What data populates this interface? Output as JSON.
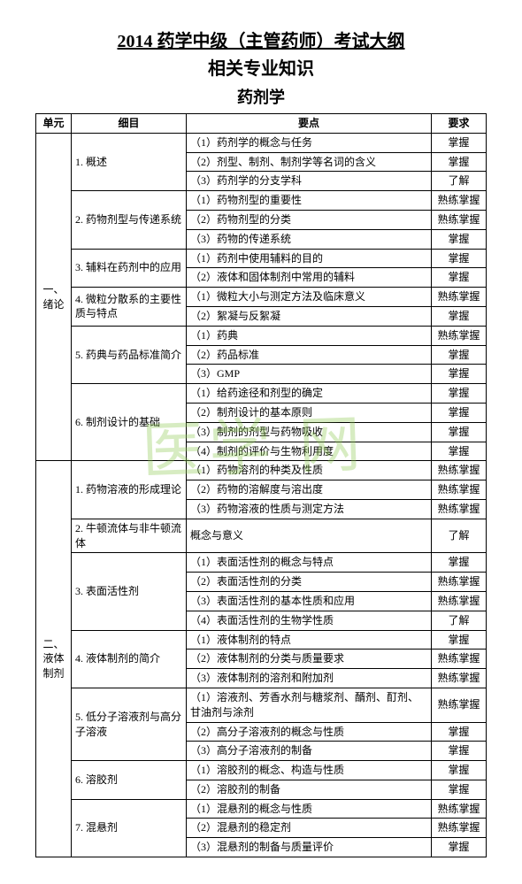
{
  "title_main": "2014 药学中级（主管药师）考试大纲",
  "title_sub": "相关专业知识",
  "title_subject": "药剂学",
  "watermark": "医学     网",
  "headers": {
    "unit": "单元",
    "sub": "细目",
    "point": "要点",
    "req": "要求"
  },
  "units": [
    {
      "name": "一、绪论",
      "subs": [
        {
          "name": "1. 概述",
          "points": [
            {
              "t": "（1）药剂学的概念与任务",
              "r": "掌握"
            },
            {
              "t": "（2）剂型、制剂、制剂学等名词的含义",
              "r": "掌握"
            },
            {
              "t": "（3）药剂学的分支学科",
              "r": "了解"
            }
          ]
        },
        {
          "name": "2. 药物剂型与传递系统",
          "points": [
            {
              "t": "（1）药物剂型的重要性",
              "r": "熟练掌握"
            },
            {
              "t": "（2）药物剂型的分类",
              "r": "熟练掌握"
            },
            {
              "t": "（3）药物的传递系统",
              "r": "掌握"
            }
          ]
        },
        {
          "name": "3. 辅料在药剂中的应用",
          "points": [
            {
              "t": "（1）药剂中使用辅料的目的",
              "r": "掌握"
            },
            {
              "t": "（2）液体和固体制剂中常用的辅料",
              "r": "掌握"
            }
          ]
        },
        {
          "name": "4. 微粒分散系的主要性质与特点",
          "points": [
            {
              "t": "（1）微粒大小与测定方法及临床意义",
              "r": "熟练掌握"
            },
            {
              "t": "（2）絮凝与反絮凝",
              "r": "掌握"
            }
          ]
        },
        {
          "name": "5. 药典与药品标准简介",
          "points": [
            {
              "t": "（1）药典",
              "r": "熟练掌握"
            },
            {
              "t": "（2）药品标准",
              "r": "掌握"
            },
            {
              "t": "（3）GMP",
              "r": "掌握"
            }
          ]
        },
        {
          "name": "6. 制剂设计的基础",
          "points": [
            {
              "t": "（1）给药途径和剂型的确定",
              "r": "掌握"
            },
            {
              "t": "（2）制剂设计的基本原则",
              "r": "掌握"
            },
            {
              "t": "（3）制剂的剂型与药物吸收",
              "r": "掌握"
            },
            {
              "t": "（4）制剂的评价与生物利用度",
              "r": "掌握"
            }
          ]
        }
      ]
    },
    {
      "name": "二、液体制剂",
      "subs": [
        {
          "name": "1. 药物溶液的形成理论",
          "points": [
            {
              "t": "（1）药物溶剂的种类及性质",
              "r": "熟练掌握"
            },
            {
              "t": "（2）药物的溶解度与溶出度",
              "r": "熟练掌握"
            },
            {
              "t": "（3）药物溶液的性质与测定方法",
              "r": "熟练掌握"
            }
          ]
        },
        {
          "name": "2. 牛顿流体与非牛顿流体",
          "points": [
            {
              "t": "概念与意义",
              "r": "了解"
            }
          ]
        },
        {
          "name": "3. 表面活性剂",
          "points": [
            {
              "t": "（1）表面活性剂的概念与特点",
              "r": "掌握"
            },
            {
              "t": "（2）表面活性剂的分类",
              "r": "熟练掌握"
            },
            {
              "t": "（3）表面活性剂的基本性质和应用",
              "r": "熟练掌握"
            },
            {
              "t": "（4）表面活性剂的生物学性质",
              "r": "了解"
            }
          ]
        },
        {
          "name": "4. 液体制剂的简介",
          "points": [
            {
              "t": "（1）液体制剂的特点",
              "r": "掌握"
            },
            {
              "t": "（2）液体制剂的分类与质量要求",
              "r": "熟练掌握"
            },
            {
              "t": "（3）液体制剂的溶剂和附加剂",
              "r": "熟练掌握"
            }
          ]
        },
        {
          "name": "5. 低分子溶液剂与高分子溶液",
          "points": [
            {
              "t": "（1）溶液剂、芳香水剂与糖浆剂、醑剂、酊剂、甘油剂与涂剂",
              "r": "熟练掌握"
            },
            {
              "t": "（2）高分子溶液剂的概念与性质",
              "r": "掌握"
            },
            {
              "t": "（3）高分子溶液剂的制备",
              "r": "掌握"
            }
          ]
        },
        {
          "name": "6. 溶胶剂",
          "points": [
            {
              "t": "（1）溶胶剂的概念、构造与性质",
              "r": "掌握"
            },
            {
              "t": "（2）溶胶剂的制备",
              "r": "掌握"
            }
          ]
        },
        {
          "name": "7. 混悬剂",
          "points": [
            {
              "t": "（1）混悬剂的概念与性质",
              "r": "熟练掌握"
            },
            {
              "t": "（2）混悬剂的稳定剂",
              "r": "熟练掌握"
            },
            {
              "t": "（3）混悬剂的制备与质量评价",
              "r": "掌握"
            }
          ]
        }
      ]
    }
  ]
}
